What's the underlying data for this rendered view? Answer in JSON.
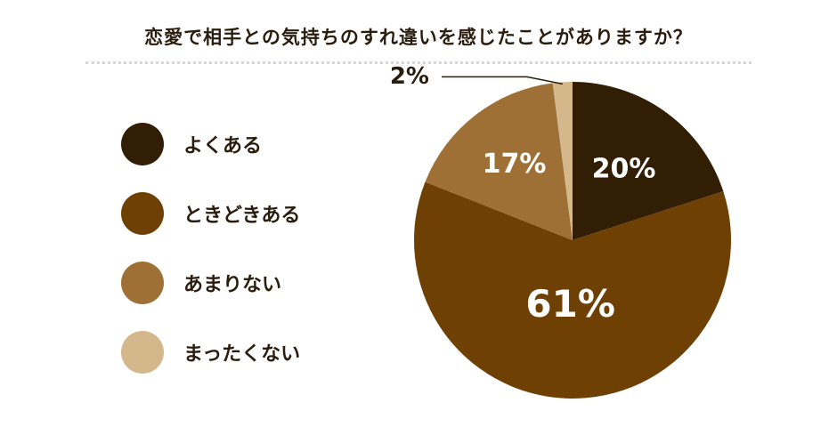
{
  "chart_data": {
    "type": "pie",
    "title": "恋愛で相手との気持ちのすれ違いを感じたことがありますか？",
    "categories": [
      "よくある",
      "ときどきある",
      "あまりない",
      "まったくない"
    ],
    "values": [
      20,
      61,
      17,
      2
    ],
    "labels": [
      "20%",
      "61%",
      "17%",
      "2%"
    ],
    "colors": [
      "#321e05",
      "#6f4004",
      "#9e7035",
      "#d5b78c"
    ],
    "legend": "left"
  }
}
